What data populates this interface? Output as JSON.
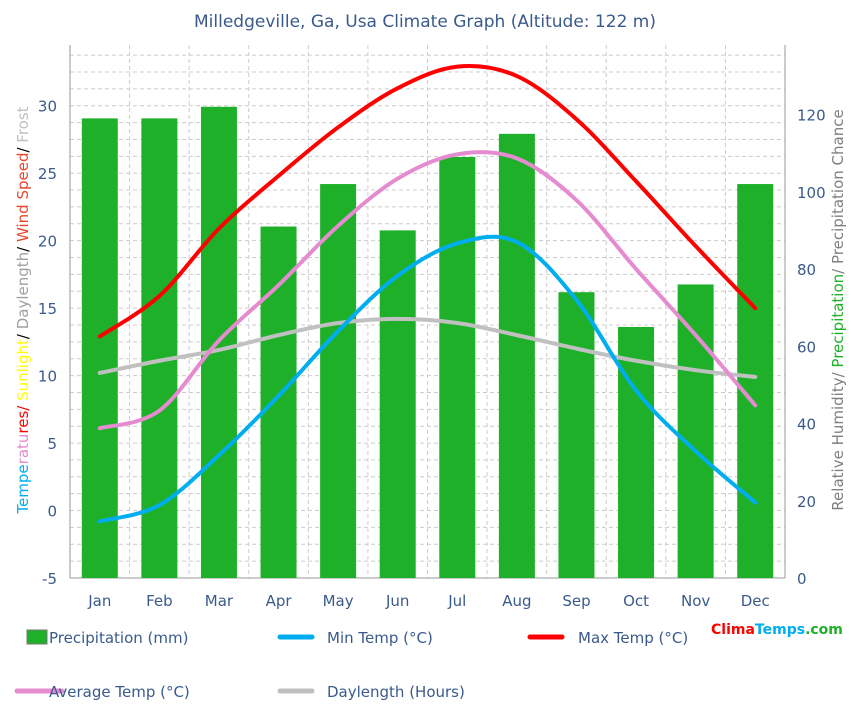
{
  "chart_data": {
    "type": "bar+line",
    "title": "Milledgeville, Ga, Usa Climate Graph (Altitude: 122 m)",
    "categories": [
      "Jan",
      "Feb",
      "Mar",
      "Apr",
      "May",
      "Jun",
      "Jul",
      "Aug",
      "Sep",
      "Oct",
      "Nov",
      "Dec"
    ],
    "ylabel_left_parts": [
      {
        "text": "Tempe",
        "color": "#00aeef"
      },
      {
        "text": "ratu",
        "color": "#e58bd0"
      },
      {
        "text": "res/ ",
        "color": "#ff0000"
      },
      {
        "text": "Sunlight",
        "color": "#ffff00"
      },
      {
        "text": "/ ",
        "color": "#000000"
      },
      {
        "text": "Daylength",
        "color": "#a0a0a0"
      },
      {
        "text": "/ ",
        "color": "#000000"
      },
      {
        "text": "Wind Speed",
        "color": "#e8462a"
      },
      {
        "text": "/ ",
        "color": "#000000"
      },
      {
        "text": "Frost",
        "color": "#c0c0c0"
      }
    ],
    "ylabel_right_parts": [
      {
        "text": "Relative Humidity/ ",
        "color": "#808080"
      },
      {
        "text": "Precipitation",
        "color": "#1fb02a"
      },
      {
        "text": "/ Precipitation Chance",
        "color": "#808080"
      }
    ],
    "ylim_left": [
      -5,
      34.5
    ],
    "yticks_left": [
      -5,
      0,
      5,
      10,
      15,
      20,
      25,
      30
    ],
    "ylim_right": [
      0,
      138
    ],
    "yticks_right": [
      0,
      20,
      40,
      60,
      80,
      100,
      120
    ],
    "grid": true,
    "legend_placement": "bottom",
    "series": [
      {
        "name": "Precipitation (mm)",
        "type": "bar",
        "axis": "right",
        "color": "#1fb02a",
        "values": [
          119,
          119,
          122,
          91,
          102,
          90,
          109,
          115,
          74,
          65,
          76,
          102
        ]
      },
      {
        "name": "Min Temp (°C)",
        "type": "line",
        "axis": "left",
        "color": "#00aeef",
        "values": [
          -0.8,
          0.4,
          4.1,
          8.5,
          13.3,
          17.4,
          19.8,
          19.9,
          15.6,
          8.9,
          4.4,
          0.6
        ]
      },
      {
        "name": "Max Temp (°C)",
        "type": "line",
        "axis": "left",
        "color": "#ff0000",
        "values": [
          12.9,
          15.9,
          20.9,
          24.8,
          28.4,
          31.3,
          32.9,
          32.2,
          29.0,
          24.4,
          19.6,
          15.0
        ]
      },
      {
        "name": "Average Temp (°C)",
        "type": "line",
        "axis": "left",
        "color": "#e58bd0",
        "values": [
          6.1,
          7.4,
          12.6,
          16.7,
          21.1,
          24.6,
          26.4,
          26.1,
          23.0,
          17.9,
          13.0,
          7.8
        ]
      },
      {
        "name": "Daylength (Hours)",
        "type": "line",
        "axis": "left",
        "color": "#c0c0c0",
        "values": [
          10.2,
          11.1,
          11.9,
          13.0,
          13.9,
          14.2,
          13.9,
          13.0,
          12.0,
          11.1,
          10.4,
          9.9
        ]
      }
    ]
  },
  "brand": {
    "part1": "Clima",
    "part2": "Temps",
    "part3": ".com"
  }
}
